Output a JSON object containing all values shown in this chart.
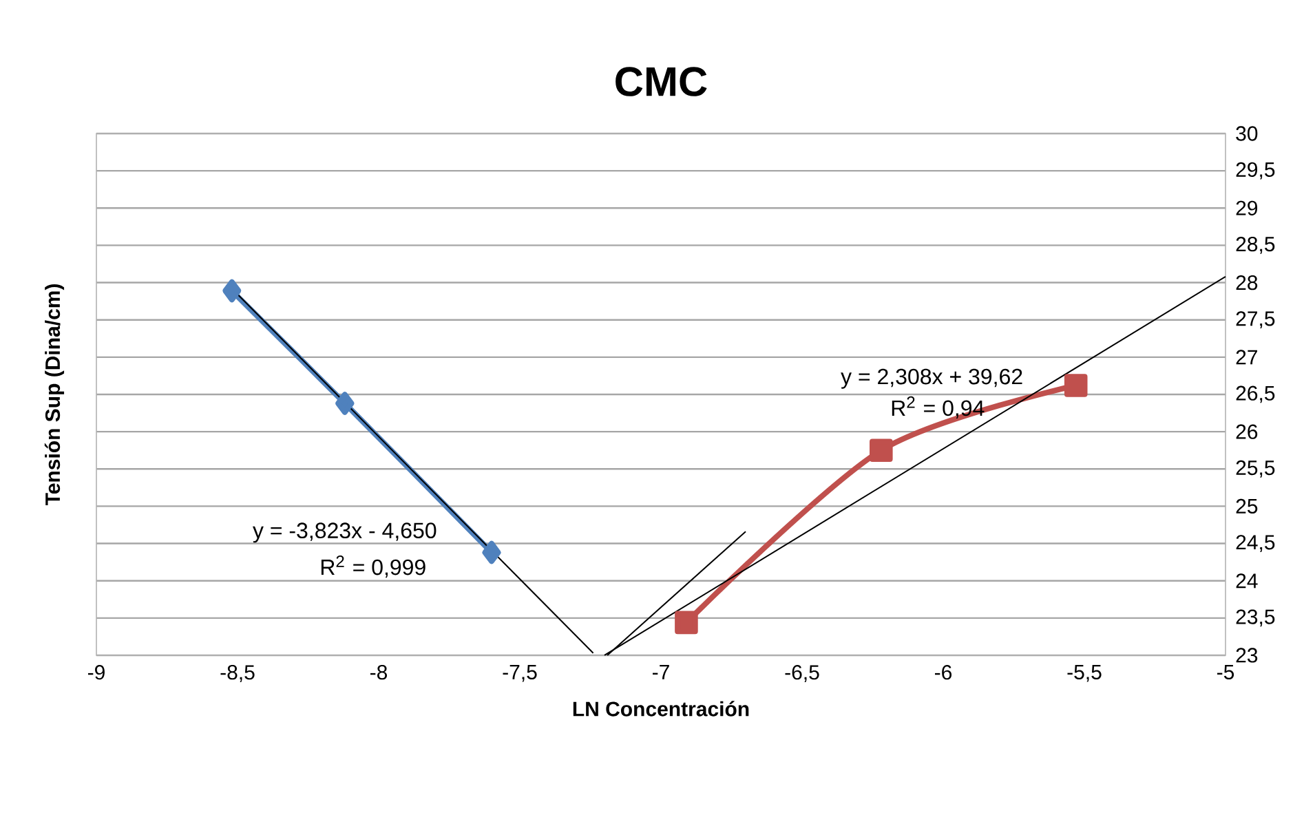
{
  "chart_data": {
    "type": "line",
    "title": "CMC",
    "xlabel": "LN Concentración",
    "ylabel": "Tensión Sup (Dina/cm)",
    "xlim": [
      -9,
      -5
    ],
    "ylim": [
      23,
      30
    ],
    "xticks": [
      -9,
      {
        "value": -8.5,
        "label": "-8,5"
      },
      -8,
      {
        "value": -7.5,
        "label": "-7,5"
      },
      -7,
      {
        "value": -6.5,
        "label": "-6,5"
      },
      -6,
      {
        "value": -5.5,
        "label": "-5,5"
      },
      -5
    ],
    "yticks": [
      23,
      {
        "value": 23.5,
        "label": "23,5"
      },
      24,
      {
        "value": 24.5,
        "label": "24,5"
      },
      25,
      {
        "value": 25.5,
        "label": "25,5"
      },
      26,
      {
        "value": 26.5,
        "label": "26,5"
      },
      27,
      {
        "value": 27.5,
        "label": "27,5"
      },
      28,
      {
        "value": 28.5,
        "label": "28,5"
      },
      29,
      {
        "value": 29.5,
        "label": "29,5"
      },
      30
    ],
    "grid": "y",
    "line_style": "solid",
    "series": [
      {
        "color": "#4f81bd",
        "marker": "diamond",
        "x": [
          -8.52,
          -8.12,
          -7.6
        ],
        "values": [
          27.89,
          26.38,
          24.38
        ]
      },
      {
        "color": "#c0504d",
        "marker": "square",
        "x": [
          -6.91,
          -6.22,
          -5.53
        ],
        "values": [
          23.44,
          25.75,
          26.62
        ]
      },
      {
        "color": "#000000",
        "marker": "none",
        "x": [
          -8.52,
          -7.24
        ],
        "values": [
          27.92,
          23.03
        ]
      },
      {
        "color": "#000000",
        "marker": "none",
        "x": [
          -7.2,
          -5
        ],
        "values": [
          23.0,
          28.08
        ]
      },
      {
        "color": "#000000",
        "marker": "none",
        "x": [
          -7.19,
          -6.7
        ],
        "values": [
          23.0,
          24.66
        ]
      }
    ],
    "annotations": [
      "y = -3,823x - 4,650",
      "R$^{2}$ = 0,999",
      "y = 2,308x + 39,62",
      "R$^{2}$ = 0,94"
    ]
  }
}
